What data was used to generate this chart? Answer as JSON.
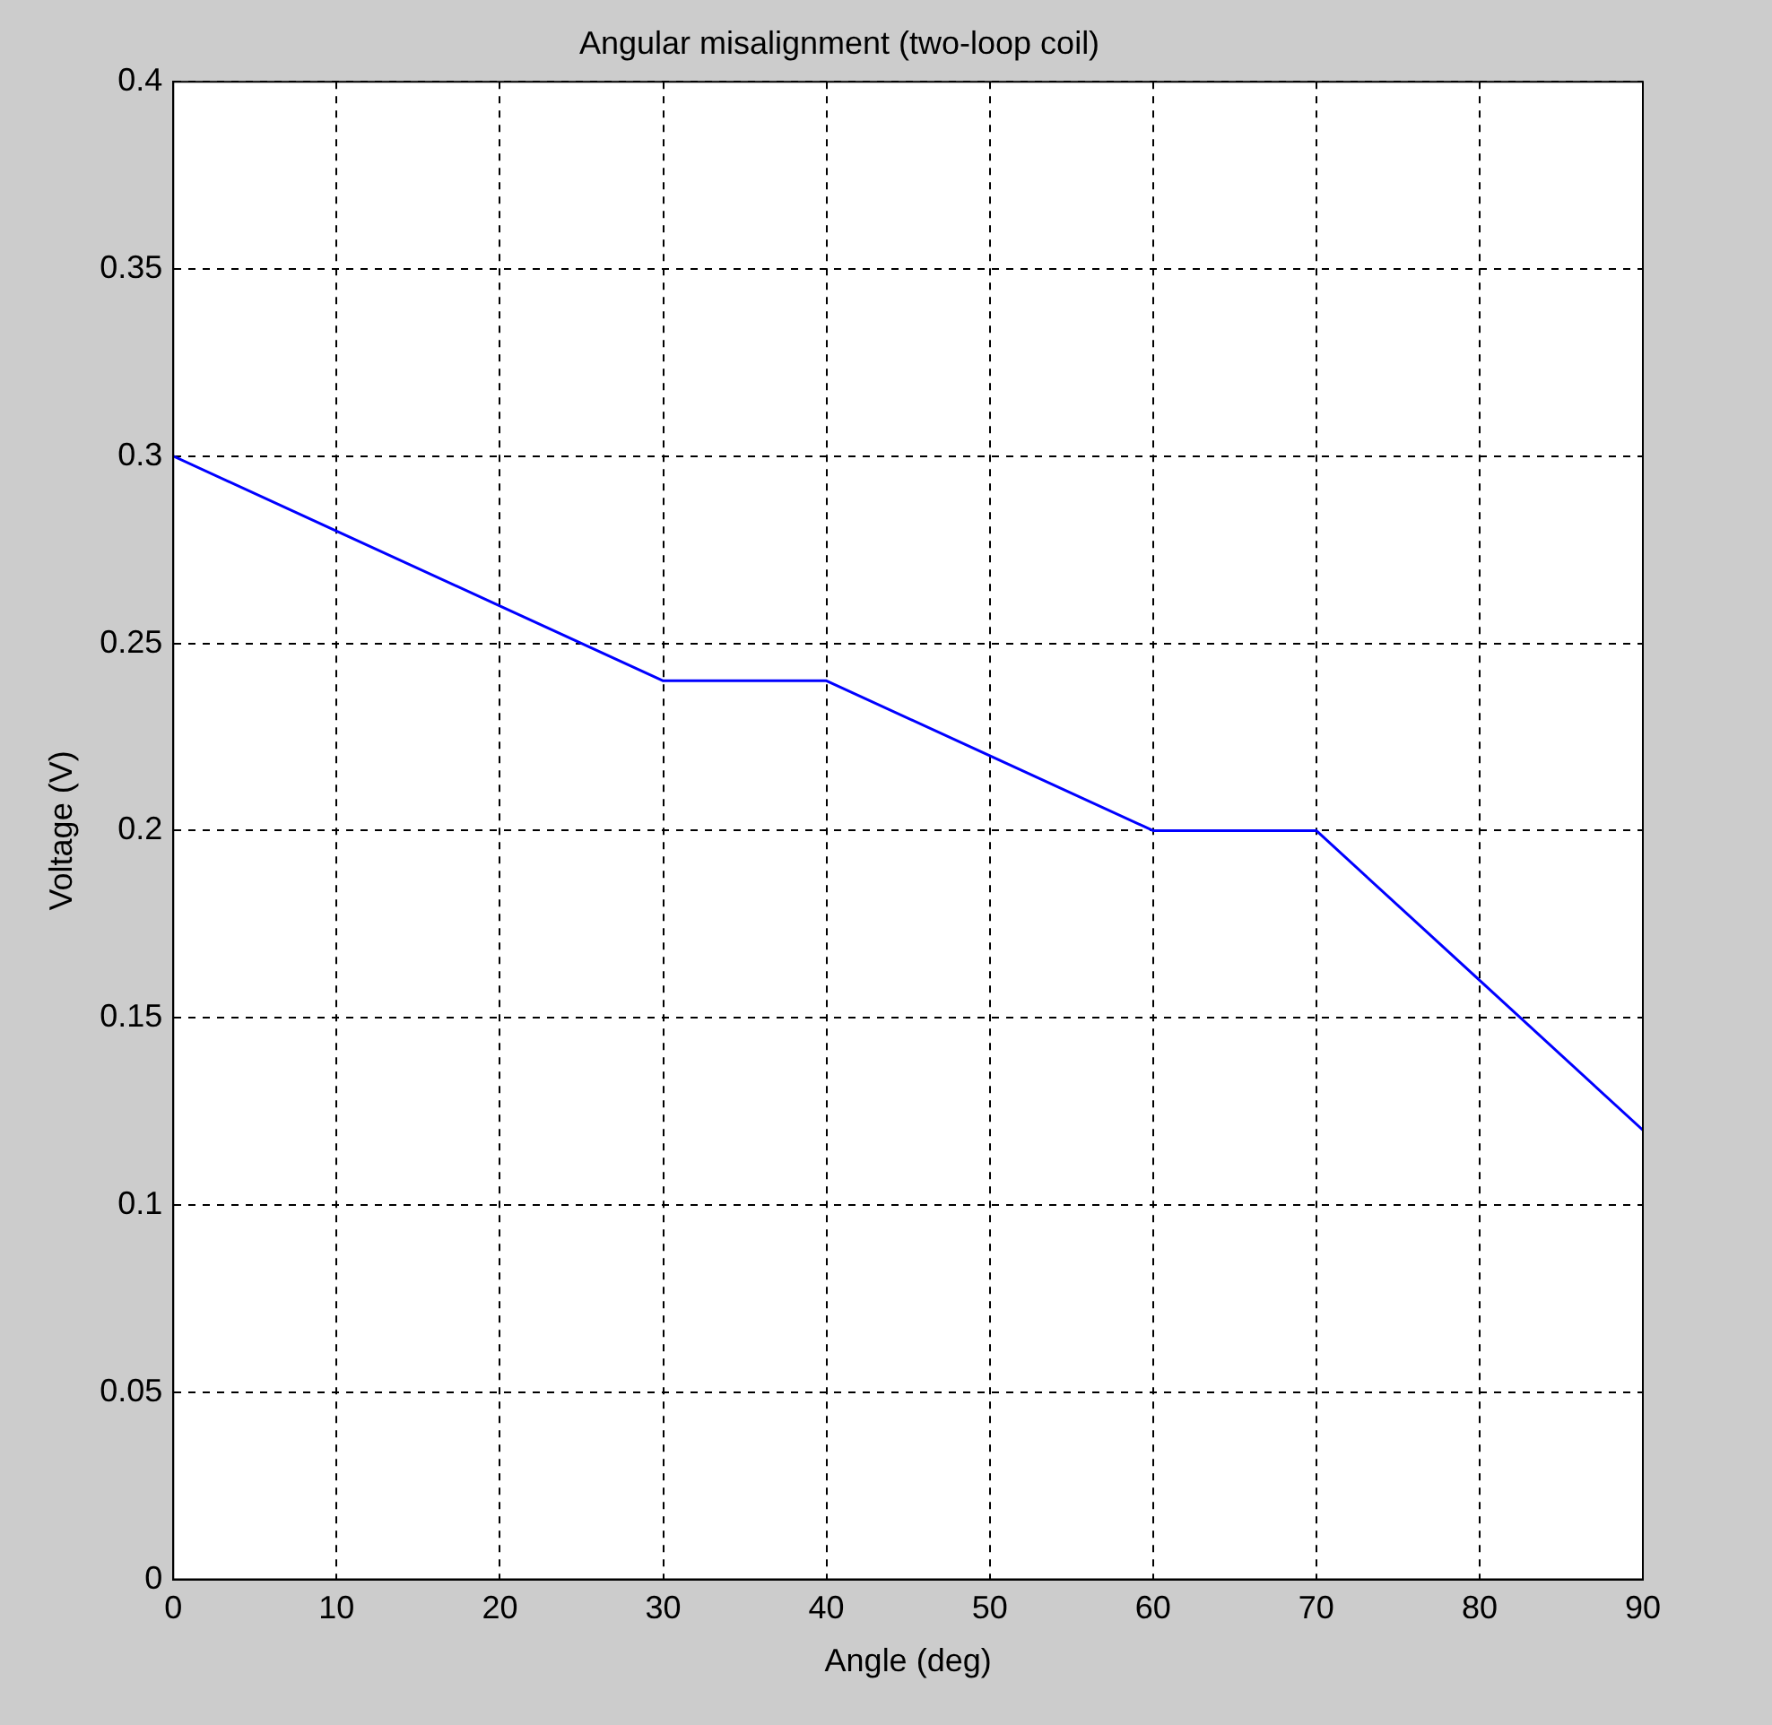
{
  "chart_data": {
    "type": "line",
    "title": "Angular misalignment (two-loop coil)",
    "xlabel": "Angle (deg)",
    "ylabel": "Voltage (V)",
    "x": [
      0,
      10,
      20,
      30,
      40,
      50,
      60,
      70,
      80,
      90
    ],
    "series": [
      {
        "color": "#0000ff",
        "values": [
          0.3,
          0.28,
          0.26,
          0.24,
          0.24,
          0.22,
          0.2,
          0.2,
          0.16,
          0.12
        ]
      }
    ],
    "xlim": [
      0,
      90
    ],
    "xticks": [
      0,
      10,
      20,
      30,
      40,
      50,
      60,
      70,
      80,
      90
    ],
    "ylim": [
      0,
      0.4
    ],
    "yticks": [
      0,
      0.05,
      0.1,
      0.15,
      0.2,
      0.25,
      0.3,
      0.35,
      0.4
    ],
    "grid": true,
    "legend": false,
    "marker": "none",
    "line_style": "solid"
  }
}
